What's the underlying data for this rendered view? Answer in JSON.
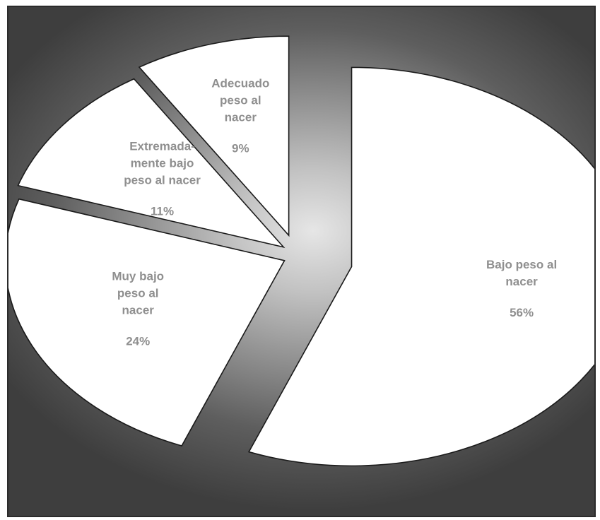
{
  "chart_data": {
    "type": "pie",
    "title": "",
    "slices": [
      {
        "name": "Bajo peso al nacer",
        "label_lines": [
          "Bajo peso al",
          "nacer"
        ],
        "value": 56,
        "value_label": "56%"
      },
      {
        "name": "Muy bajo peso al nacer",
        "label_lines": [
          "Muy bajo",
          "peso al",
          "nacer"
        ],
        "value": 24,
        "value_label": "24%"
      },
      {
        "name": "Extremadamente bajo peso al nacer",
        "label_lines": [
          "Extremada-",
          "mente bajo",
          "peso al nacer"
        ],
        "value": 11,
        "value_label": "11%"
      },
      {
        "name": "Adecuado peso al nacer",
        "label_lines": [
          "Adecuado",
          "peso al",
          "nacer"
        ],
        "value": 9,
        "value_label": "9%"
      }
    ],
    "exploded": true,
    "legend": "none",
    "colors": {
      "slice_fill": "#ffffff",
      "slice_stroke": "#1a1a1a",
      "label": "#8f8f8f",
      "background": "#6e6e6e"
    }
  }
}
